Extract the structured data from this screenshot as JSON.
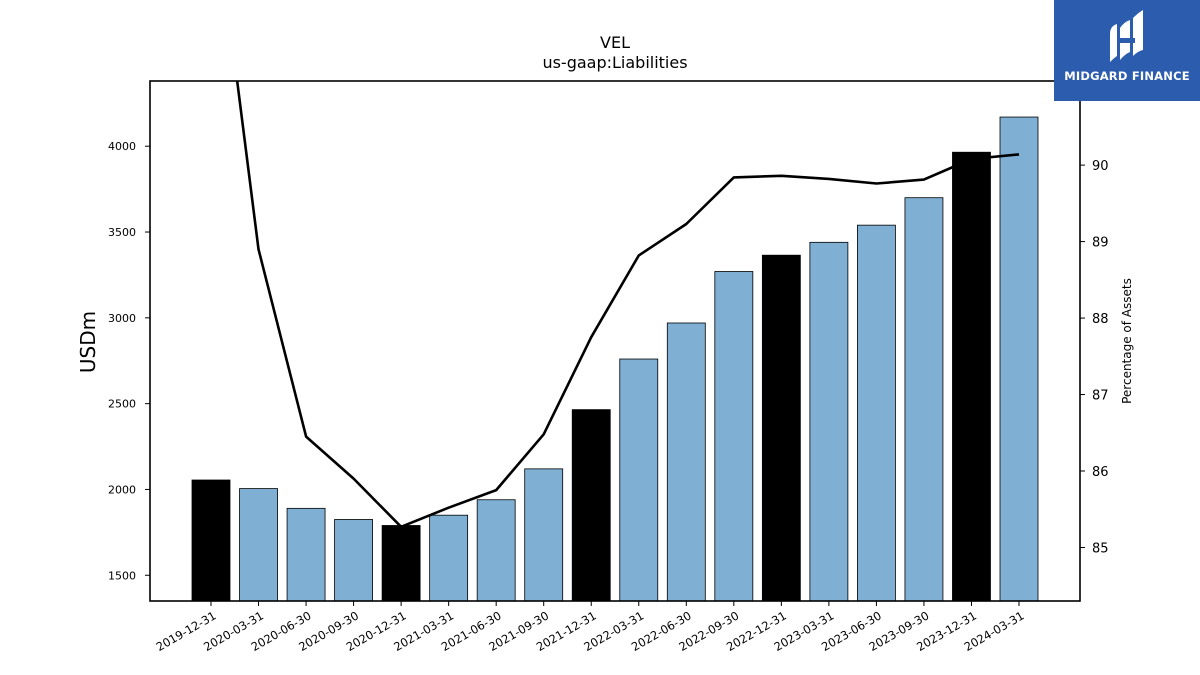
{
  "chart_data": {
    "type": "bar",
    "title": "VEL",
    "subtitle": "us-gaap:Liabilities",
    "ylabel": "USDm",
    "y2label": "Percentage of Assets",
    "categories": [
      "2019-12-31",
      "2020-03-31",
      "2020-06-30",
      "2020-09-30",
      "2020-12-31",
      "2021-03-31",
      "2021-06-30",
      "2021-09-30",
      "2021-12-31",
      "2022-03-31",
      "2022-06-30",
      "2022-09-30",
      "2022-12-31",
      "2023-03-31",
      "2023-06-30",
      "2023-09-30",
      "2023-12-31",
      "2024-03-31"
    ],
    "series": [
      {
        "type": "bar",
        "values": [
          2055,
          2005,
          1890,
          1825,
          1790,
          1850,
          1940,
          2120,
          2465,
          2760,
          2970,
          3270,
          3365,
          3440,
          3540,
          3700,
          3965,
          4170
        ],
        "colors": [
          "#000000",
          "#7fafd3",
          "#7fafd3",
          "#7fafd3",
          "#000000",
          "#7fafd3",
          "#7fafd3",
          "#7fafd3",
          "#000000",
          "#7fafd3",
          "#7fafd3",
          "#7fafd3",
          "#000000",
          "#7fafd3",
          "#7fafd3",
          "#7fafd3",
          "#000000",
          "#7fafd3"
        ]
      },
      {
        "type": "line",
        "axis": "right",
        "values": [
          93.8,
          88.9,
          86.45,
          85.9,
          85.27,
          85.52,
          85.75,
          86.48,
          87.75,
          88.82,
          89.23,
          89.84,
          89.86,
          89.82,
          89.76,
          89.81,
          90.08,
          90.14
        ],
        "color": "#000000"
      }
    ],
    "ylim": [
      1350,
      4380
    ],
    "yticks": [
      1500,
      2000,
      2500,
      3000,
      3500,
      4000
    ],
    "y2lim": [
      84.3,
      91.1
    ],
    "y2ticks": [
      85,
      86,
      87,
      88,
      89,
      90
    ]
  },
  "logo": {
    "text": "MIDGARD FINANCE",
    "bg_color": "#2b5cad"
  }
}
